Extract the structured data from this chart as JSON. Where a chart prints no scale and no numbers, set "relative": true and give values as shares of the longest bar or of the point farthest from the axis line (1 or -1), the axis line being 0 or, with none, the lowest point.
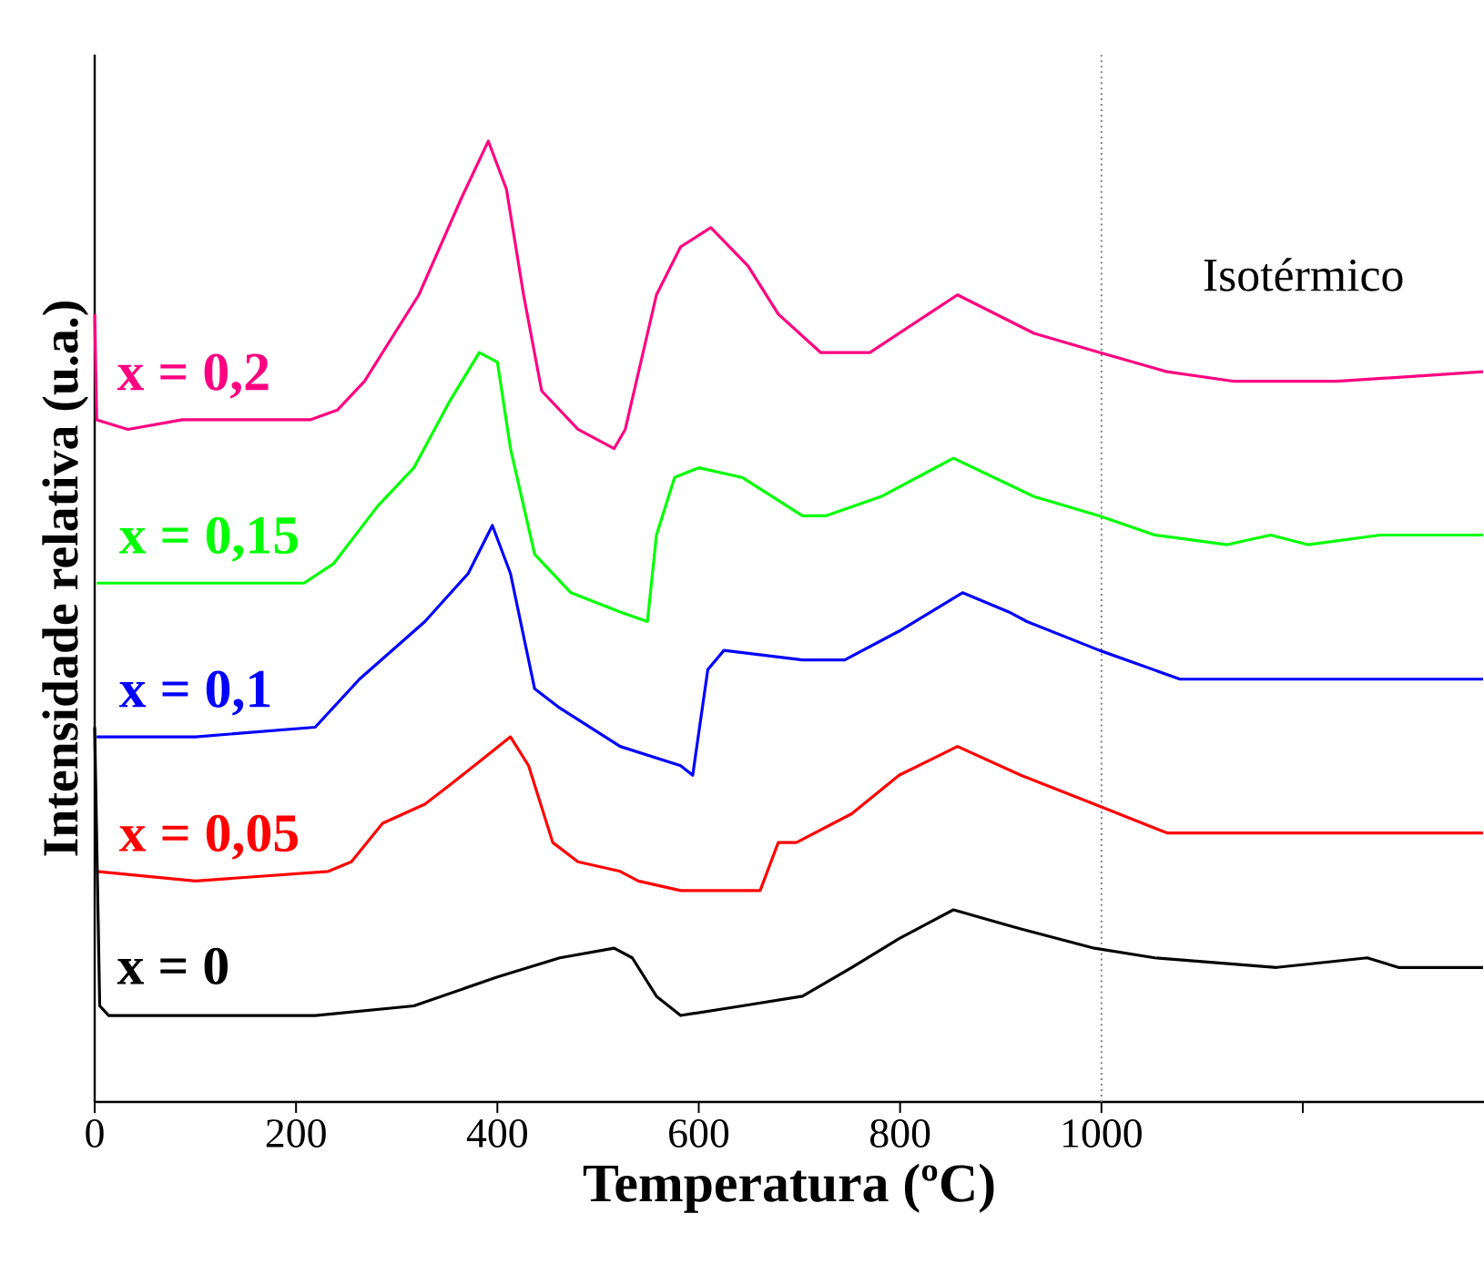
{
  "chart_data": {
    "type": "line",
    "relative": true,
    "xlabel": "Temperatura (ºC)",
    "ylabel": "Intensidade relativa (u.a.)",
    "xlim": [
      0,
      1380
    ],
    "xticks": [
      0,
      200,
      400,
      600,
      800,
      1000,
      {
        "value": 1200,
        "label": null
      }
    ],
    "annotations": [
      "Isotérmico"
    ],
    "ref_lines": [
      {
        "axis": "x",
        "value": 1000,
        "color": "#808080",
        "line_style": "dotted"
      }
    ],
    "series": [
      {
        "name": "x = 0,2",
        "color": "#ff0080",
        "x": [
          0,
          2,
          33,
          87,
          214,
          241,
          268,
          322,
          364,
          391,
          409,
          426,
          444,
          480,
          516,
          527,
          558,
          582,
          612,
          649,
          679,
          721,
          770,
          857,
          933,
          998,
          1065,
          1132,
          1234,
          1379
        ],
        "values": [
          0.82,
          0.71,
          0.7,
          0.71,
          0.71,
          0.72,
          0.75,
          0.84,
          0.94,
          1.0,
          0.95,
          0.84,
          0.74,
          0.7,
          0.68,
          0.7,
          0.84,
          0.89,
          0.91,
          0.87,
          0.82,
          0.78,
          0.78,
          0.84,
          0.8,
          0.78,
          0.76,
          0.75,
          0.75,
          0.76
        ]
      },
      {
        "name": "x = 0,15",
        "color": "#00ff00",
        "x": [
          2,
          100,
          208,
          237,
          281,
          317,
          353,
          382,
          400,
          413,
          437,
          473,
          522,
          549,
          558,
          576,
          600,
          643,
          703,
          726,
          781,
          853,
          933,
          998,
          1053,
          1125,
          1168,
          1205,
          1277,
          1379
        ],
        "values": [
          0.54,
          0.54,
          0.54,
          0.56,
          0.62,
          0.66,
          0.73,
          0.78,
          0.77,
          0.68,
          0.57,
          0.53,
          0.51,
          0.5,
          0.59,
          0.65,
          0.66,
          0.65,
          0.61,
          0.61,
          0.63,
          0.67,
          0.63,
          0.61,
          0.59,
          0.58,
          0.59,
          0.58,
          0.59,
          0.59
        ]
      },
      {
        "name": "x = 0,1",
        "color": "#0000ff",
        "x": [
          2,
          100,
          219,
          263,
          328,
          371,
          395,
          413,
          437,
          462,
          522,
          582,
          594,
          609,
          625,
          703,
          745,
          799,
          862,
          908,
          926,
          998,
          1078,
          1132,
          1234,
          1319,
          1379
        ],
        "values": [
          0.38,
          0.38,
          0.39,
          0.44,
          0.5,
          0.55,
          0.6,
          0.55,
          0.43,
          0.41,
          0.37,
          0.35,
          0.34,
          0.45,
          0.47,
          0.46,
          0.46,
          0.49,
          0.53,
          0.51,
          0.5,
          0.47,
          0.44,
          0.44,
          0.44,
          0.44,
          0.44
        ]
      },
      {
        "name": "x = 0,05",
        "color": "#ff0000",
        "x": [
          2,
          100,
          232,
          255,
          286,
          328,
          353,
          389,
          413,
          431,
          455,
          480,
          522,
          540,
          582,
          661,
          679,
          697,
          752,
          799,
          857,
          920,
          993,
          1065,
          1114,
          1234,
          1295,
          1379
        ],
        "values": [
          0.24,
          0.23,
          0.24,
          0.25,
          0.29,
          0.31,
          0.33,
          0.36,
          0.38,
          0.35,
          0.27,
          0.25,
          0.24,
          0.23,
          0.22,
          0.22,
          0.27,
          0.27,
          0.3,
          0.34,
          0.37,
          0.34,
          0.31,
          0.28,
          0.28,
          0.28,
          0.28,
          0.28
        ]
      },
      {
        "name": "x = 0",
        "color": "#000000",
        "x": [
          0,
          5,
          14,
          100,
          219,
          317,
          400,
          462,
          516,
          534,
          558,
          582,
          643,
          703,
          752,
          799,
          853,
          920,
          993,
          1053,
          1174,
          1264,
          1295,
          1379
        ],
        "values": [
          0.39,
          0.1,
          0.09,
          0.09,
          0.09,
          0.1,
          0.13,
          0.15,
          0.16,
          0.15,
          0.11,
          0.09,
          0.1,
          0.11,
          0.14,
          0.17,
          0.2,
          0.18,
          0.16,
          0.15,
          0.14,
          0.15,
          0.14,
          0.14
        ]
      }
    ]
  }
}
